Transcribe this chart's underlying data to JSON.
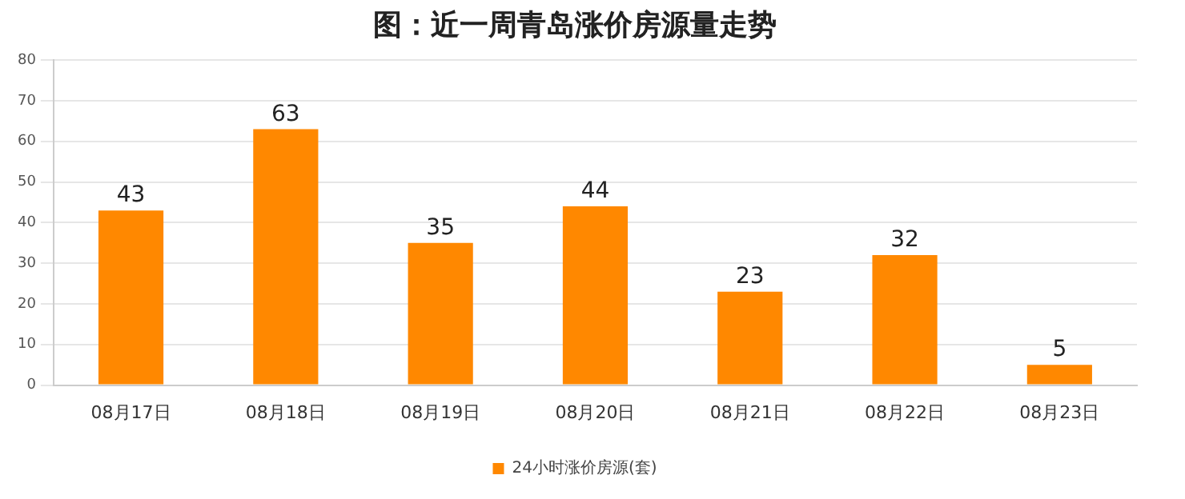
{
  "chart_data": {
    "type": "bar",
    "title": "图：近一周青岛涨价房源量走势",
    "categories": [
      "08月17日",
      "08月18日",
      "08月19日",
      "08月20日",
      "08月21日",
      "08月22日",
      "08月23日"
    ],
    "series": [
      {
        "name": "24小时涨价房源(套)",
        "color": "#ff8800",
        "values": [
          43,
          63,
          35,
          44,
          23,
          32,
          5
        ]
      }
    ],
    "ylim": [
      0,
      80
    ],
    "yticks": [
      0,
      10,
      20,
      30,
      40,
      50,
      60,
      70,
      80
    ],
    "grid": "y",
    "legend": "bottom",
    "data_labels": true
  }
}
